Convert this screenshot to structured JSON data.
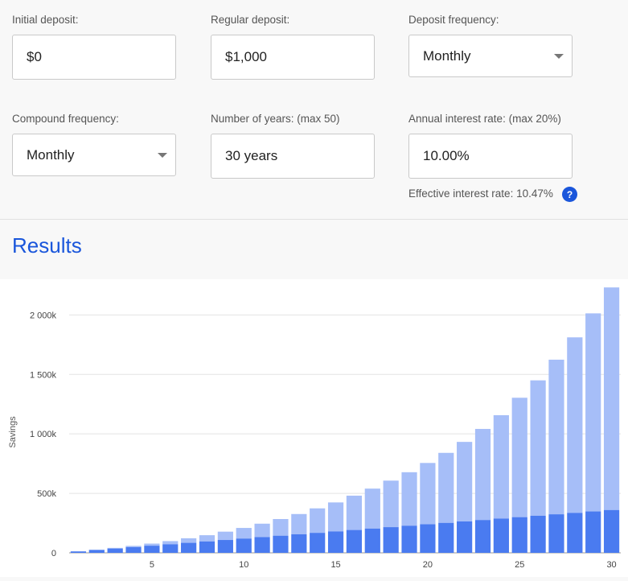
{
  "form": {
    "initial_deposit": {
      "label": "Initial deposit:",
      "value": "$0"
    },
    "regular_deposit": {
      "label": "Regular deposit:",
      "value": "$1,000"
    },
    "deposit_frequency": {
      "label": "Deposit frequency:",
      "value": "Monthly"
    },
    "compound_frequency": {
      "label": "Compound frequency:",
      "value": "Monthly"
    },
    "years": {
      "label": "Number of years: (max 50)",
      "value": "30 years"
    },
    "interest_rate": {
      "label": "Annual interest rate: (max 20%)",
      "value": "10.00%"
    },
    "effective_rate_text": "Effective interest rate: 10.47%",
    "help_icon": "?"
  },
  "results": {
    "title": "Results"
  },
  "colors": {
    "accent": "#1a56db",
    "principal": "#4a7bf0",
    "interest": "#a6bef8"
  },
  "chart_data": {
    "type": "bar",
    "stacked": true,
    "ylabel": "Savings",
    "xlabel": "",
    "x_tick_labels": [
      "5",
      "10",
      "15",
      "20",
      "25",
      "30"
    ],
    "y_tick_labels": [
      "0",
      "500k",
      "1 000k",
      "1 500k",
      "2 000k"
    ],
    "ylim": [
      0,
      2300
    ],
    "grid": true,
    "x": [
      1,
      2,
      3,
      4,
      5,
      6,
      7,
      8,
      9,
      10,
      11,
      12,
      13,
      14,
      15,
      16,
      17,
      18,
      19,
      20,
      21,
      22,
      23,
      24,
      25,
      26,
      27,
      28,
      29,
      30
    ],
    "series": [
      {
        "values": [
          12,
          24,
          36,
          48,
          60,
          72,
          84,
          96,
          108,
          120,
          132,
          144,
          156,
          168,
          180,
          192,
          204,
          216,
          228,
          240,
          252,
          264,
          276,
          288,
          300,
          312,
          324,
          336,
          348,
          360
        ]
      },
      {
        "values": [
          0.6,
          2.2,
          5.6,
          10.5,
          17.6,
          26.6,
          38.6,
          52.2,
          70.1,
          89.3,
          113.1,
          140.1,
          170.3,
          205.9,
          243.8,
          288.7,
          335.9,
          391.1,
          449.7,
          515.5,
          588.4,
          668.6,
          765.6,
          869.2,
          1003.8,
          1137.9,
          1299.8,
          1475.4,
          1665.2,
          1871.1
        ]
      }
    ]
  }
}
